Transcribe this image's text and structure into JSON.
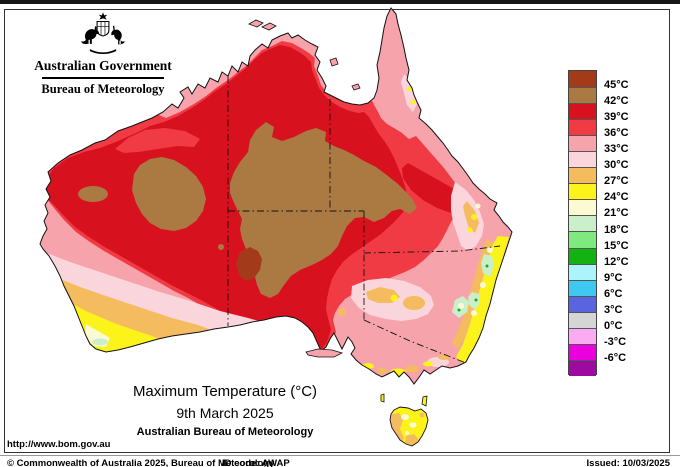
{
  "header": {
    "government_title": "Australian Government",
    "agency_title": "Bureau of Meteorology"
  },
  "legend": {
    "scale_labels": [
      "45°C",
      "42°C",
      "39°C",
      "36°C",
      "33°C",
      "30°C",
      "27°C",
      "24°C",
      "21°C",
      "18°C",
      "15°C",
      "12°C",
      "9°C",
      "6°C",
      "3°C",
      "0°C",
      "-3°C",
      "-6°C"
    ],
    "scale_colors": [
      "#A33B1B",
      "#AA7A42",
      "#D8111E",
      "#F13B44",
      "#F7A3AB",
      "#FBD5DC",
      "#F5BB5F",
      "#FBF319",
      "#FBFAD3",
      "#CBEFCB",
      "#7FE97F",
      "#12B212",
      "#ABF5FA",
      "#3FC8F0",
      "#5A64DE",
      "#D5D5D5",
      "#FAABF2",
      "#EA00DE",
      "#9D0AA0"
    ]
  },
  "caption": {
    "title": "Maximum Temperature (°C)",
    "date": "9th March 2025",
    "source": "Australian Bureau of Meteorology"
  },
  "footer": {
    "url": "http://www.bom.gov.au",
    "copyright": "© Commonwealth of Australia 2025, Bureau of Meteorology",
    "id_code": "ID code: AWAP",
    "issued": "Issued: 10/03/2025"
  }
}
